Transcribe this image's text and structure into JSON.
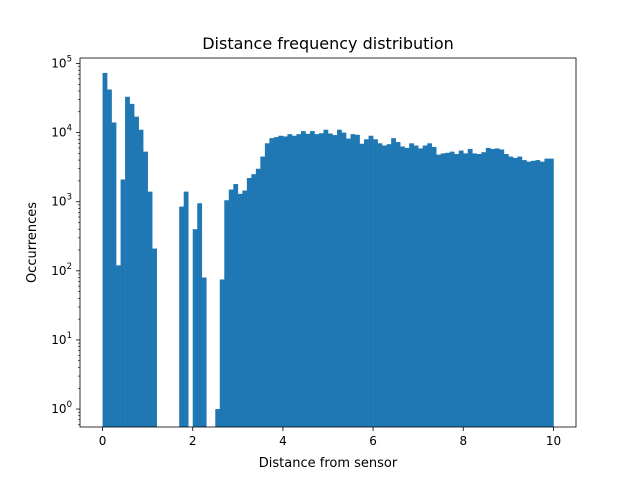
{
  "chart_data": {
    "type": "bar",
    "title": "Distance frequency distribution",
    "xlabel": "Distance from sensor",
    "ylabel": "Occurrences",
    "yscale": "log",
    "xlim": [
      -0.5,
      10.5
    ],
    "ylim": [
      0.55,
      120000
    ],
    "grid": false,
    "legend": "none",
    "bar_color": "#1f77b4",
    "bin_width": 0.1,
    "x_ticks": [
      0,
      2,
      4,
      6,
      8,
      10
    ],
    "x_tick_labels": [
      "0",
      "2",
      "4",
      "6",
      "8",
      "10"
    ],
    "y_ticks": [
      1,
      10,
      100,
      1000,
      10000,
      100000
    ],
    "y_tick_labels": [
      {
        "base": "10",
        "exp": "0"
      },
      {
        "base": "10",
        "exp": "1"
      },
      {
        "base": "10",
        "exp": "2"
      },
      {
        "base": "10",
        "exp": "3"
      },
      {
        "base": "10",
        "exp": "4"
      },
      {
        "base": "10",
        "exp": "5"
      }
    ],
    "x": [
      0.0,
      0.1,
      0.2,
      0.3,
      0.4,
      0.5,
      0.6,
      0.7,
      0.8,
      0.9,
      1.0,
      1.1,
      1.2,
      1.3,
      1.4,
      1.5,
      1.6,
      1.7,
      1.8,
      1.9,
      2.0,
      2.1,
      2.2,
      2.3,
      2.4,
      2.5,
      2.6,
      2.7,
      2.8,
      2.9,
      3.0,
      3.1,
      3.2,
      3.3,
      3.4,
      3.5,
      3.6,
      3.7,
      3.8,
      3.9,
      4.0,
      4.1,
      4.2,
      4.3,
      4.4,
      4.5,
      4.6,
      4.7,
      4.8,
      4.9,
      5.0,
      5.1,
      5.2,
      5.3,
      5.4,
      5.5,
      5.6,
      5.7,
      5.8,
      5.9,
      6.0,
      6.1,
      6.2,
      6.3,
      6.4,
      6.5,
      6.6,
      6.7,
      6.8,
      6.9,
      7.0,
      7.1,
      7.2,
      7.3,
      7.4,
      7.5,
      7.6,
      7.7,
      7.8,
      7.9,
      8.0,
      8.1,
      8.2,
      8.3,
      8.4,
      8.5,
      8.6,
      8.7,
      8.8,
      8.9,
      9.0,
      9.1,
      9.2,
      9.3,
      9.4,
      9.5,
      9.6,
      9.7,
      9.8,
      9.9
    ],
    "values": [
      73000,
      42000,
      14000,
      120,
      2100,
      33000,
      26000,
      17000,
      11000,
      5300,
      1400,
      210,
      0,
      0,
      0,
      0,
      0,
      850,
      1400,
      0,
      400,
      950,
      80,
      0,
      0,
      1,
      75,
      1050,
      1500,
      1800,
      1300,
      1450,
      2200,
      2500,
      3000,
      4500,
      7000,
      8300,
      8600,
      9000,
      8800,
      9500,
      9000,
      9500,
      10500,
      9600,
      10500,
      9500,
      9800,
      11000,
      9700,
      9200,
      11000,
      10000,
      8200,
      9500,
      9300,
      6900,
      8000,
      9000,
      8000,
      7000,
      6500,
      6800,
      8300,
      7300,
      6300,
      6000,
      7000,
      6500,
      5900,
      6500,
      7000,
      6200,
      4800,
      5000,
      5100,
      5300,
      4900,
      5500,
      5000,
      5800,
      5000,
      4900,
      5200,
      6000,
      5800,
      5900,
      5700,
      4900,
      4500,
      4300,
      4500,
      4000,
      3800,
      3900,
      4000,
      3800,
      4200,
      4200
    ]
  }
}
